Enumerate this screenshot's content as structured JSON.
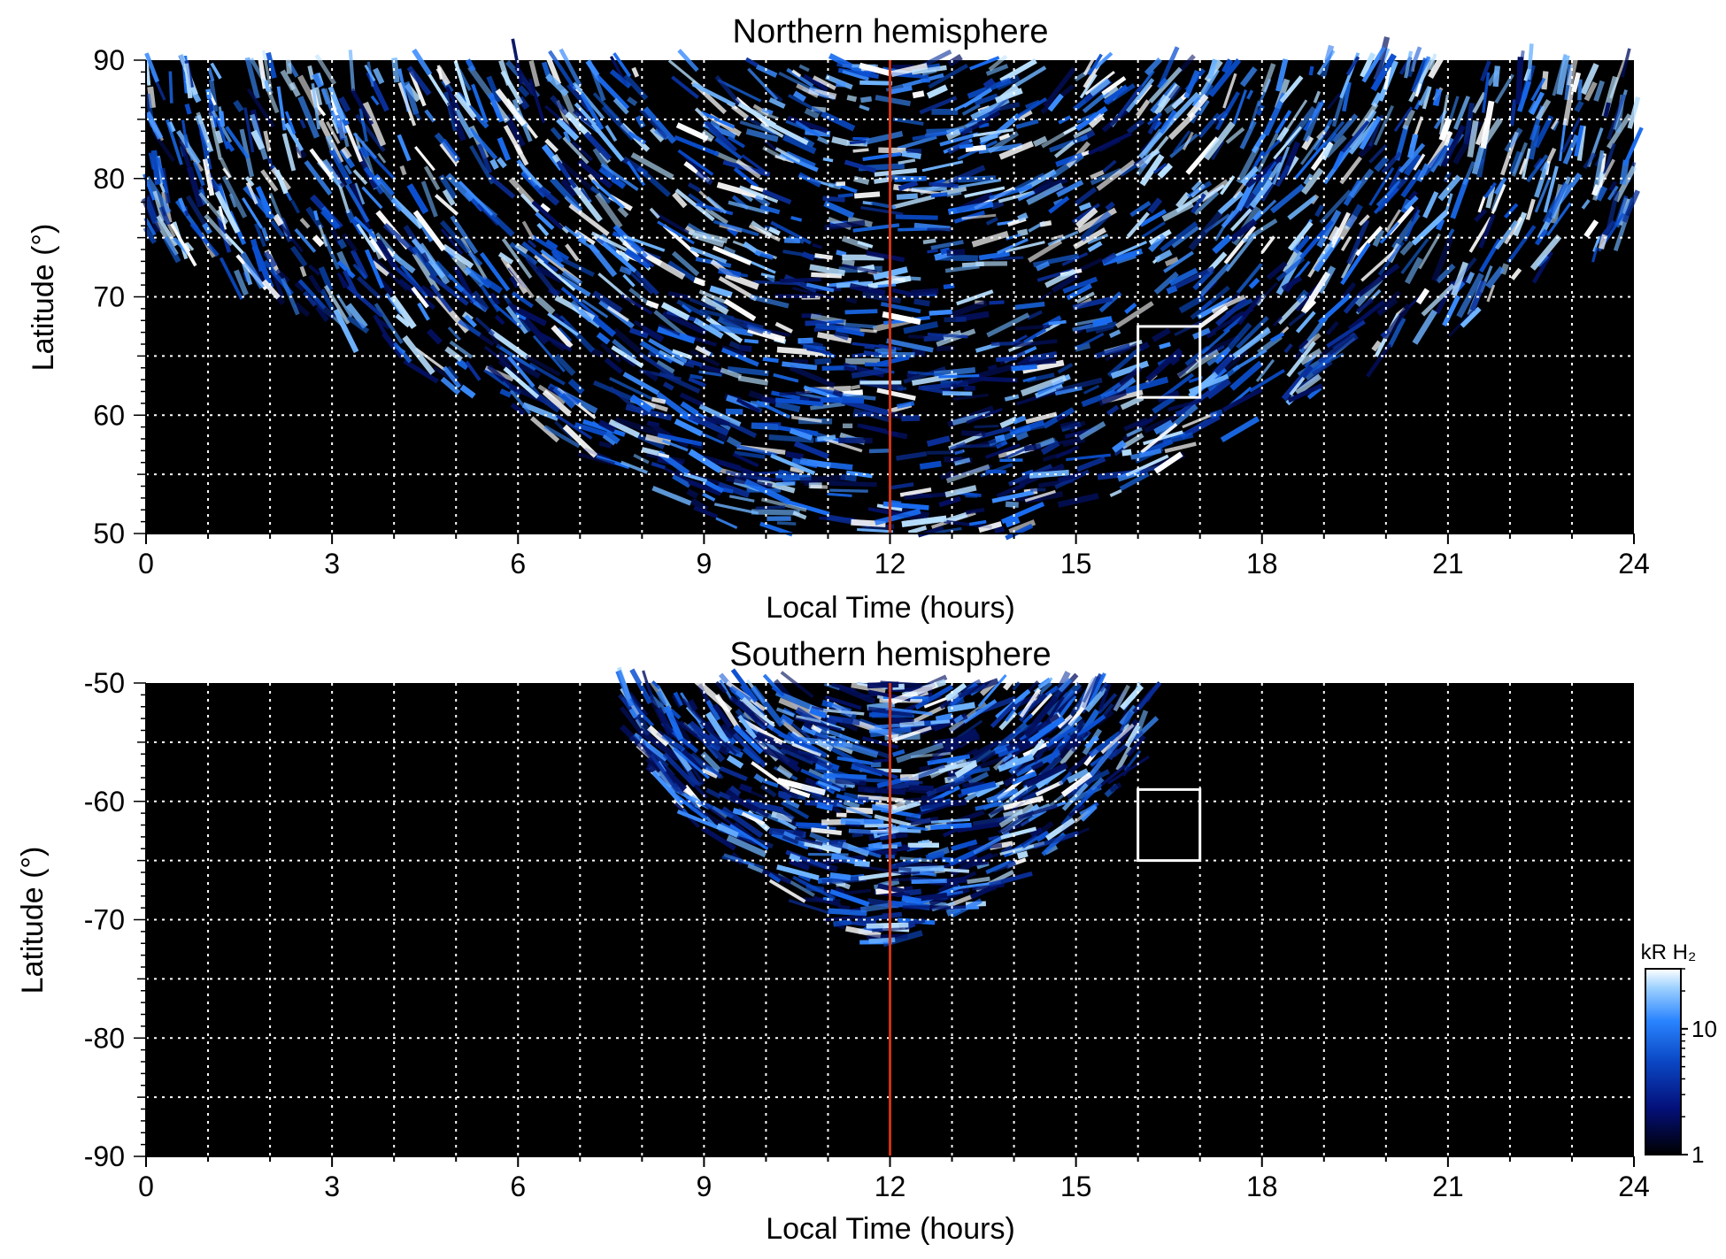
{
  "chart_data": [
    {
      "type": "heatmap",
      "title": "Northern hemisphere",
      "xlabel": "Local Time (hours)",
      "ylabel": "Latitude (°)",
      "xlim": [
        0,
        24
      ],
      "ylim": [
        50,
        90
      ],
      "xticks": [
        "0",
        "3",
        "6",
        "9",
        "12",
        "15",
        "18",
        "21",
        "24"
      ],
      "yticks": [
        "50",
        "60",
        "70",
        "80",
        "90"
      ],
      "grid": true,
      "marker_line_hours": 12,
      "highlight_box": {
        "x0_hours": 16,
        "x1_hours": 17,
        "y0_deg": 61.5,
        "y1_deg": 67.5
      }
    },
    {
      "type": "heatmap",
      "title": "Southern hemisphere",
      "xlabel": "Local Time (hours)",
      "ylabel": "Latitude (°)",
      "xlim": [
        0,
        24
      ],
      "ylim": [
        -90,
        -50
      ],
      "xticks": [
        "0",
        "3",
        "6",
        "9",
        "12",
        "15",
        "18",
        "21",
        "24"
      ],
      "yticks": [
        "-50",
        "-60",
        "-70",
        "-80",
        "-90"
      ],
      "grid": true,
      "marker_line_hours": 12,
      "highlight_box": {
        "x0_hours": 16,
        "x1_hours": 17,
        "y0_deg": -65,
        "y1_deg": -59
      }
    }
  ],
  "colorbar": {
    "label": "kR H₂",
    "ticks": [
      "1",
      "10"
    ],
    "scale": "log",
    "colors": [
      "#000000",
      "#04107a",
      "#0a47c4",
      "#2a84ff",
      "#9fd2ff",
      "#ffffff"
    ]
  },
  "colors": {
    "marker_line": "#cc3311",
    "grid": "#ffffff",
    "box": "#ffffff",
    "background": "#000000"
  }
}
